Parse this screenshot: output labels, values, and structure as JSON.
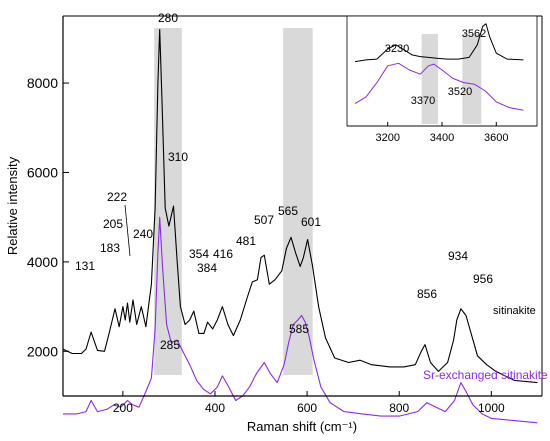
{
  "chart_data": [
    {
      "type": "line",
      "title": "",
      "xlabel": "Raman shift (cm⁻¹)",
      "ylabel": "Relative intensity",
      "xlim": [
        70,
        1110
      ],
      "ylim": [
        1000,
        9500
      ],
      "xticks": [
        200,
        400,
        600,
        800,
        1000
      ],
      "yticks": [
        2000,
        4000,
        6000,
        8000
      ],
      "grid": false,
      "legend": "labels placed beside curves",
      "highlight_bands_x": [
        [
          268,
          328
        ],
        [
          548,
          612
        ]
      ],
      "series": [
        {
          "name": "sitinakite",
          "color": "#000000",
          "x": [
            70,
            90,
            110,
            120,
            131,
            145,
            160,
            170,
            183,
            192,
            200,
            205,
            210,
            215,
            222,
            230,
            240,
            250,
            262,
            270,
            276,
            280,
            285,
            292,
            300,
            310,
            318,
            325,
            335,
            345,
            354,
            365,
            376,
            384,
            395,
            405,
            416,
            428,
            440,
            455,
            470,
            481,
            492,
            500,
            507,
            518,
            530,
            545,
            555,
            565,
            575,
            585,
            592,
            601,
            612,
            625,
            640,
            660,
            690,
            715,
            740,
            780,
            810,
            835,
            848,
            856,
            868,
            885,
            905,
            918,
            925,
            934,
            945,
            956,
            970,
            990,
            1010,
            1050,
            1100
          ],
          "y": [
            2050,
            1950,
            1950,
            2050,
            2430,
            2020,
            2000,
            2400,
            2950,
            2550,
            3000,
            2700,
            3080,
            2650,
            3150,
            2600,
            3000,
            2550,
            3500,
            5200,
            8000,
            9200,
            7600,
            5200,
            4800,
            5250,
            4000,
            3000,
            2600,
            2700,
            2900,
            2400,
            2400,
            2650,
            2500,
            2700,
            3000,
            2600,
            2350,
            2700,
            3200,
            3550,
            3600,
            4100,
            4150,
            3500,
            3600,
            3800,
            4300,
            4550,
            4200,
            3900,
            4100,
            4500,
            3900,
            3000,
            2300,
            1850,
            1750,
            1800,
            1700,
            1650,
            1650,
            1700,
            2000,
            2150,
            1750,
            1550,
            1750,
            2250,
            2700,
            2950,
            2800,
            2400,
            1900,
            1700,
            1550,
            1350,
            1300
          ]
        },
        {
          "name": "Sr-exchanged sitinakite",
          "color": "#8a2be2",
          "x": [
            70,
            100,
            120,
            131,
            145,
            165,
            180,
            195,
            210,
            222,
            235,
            250,
            262,
            270,
            276,
            280,
            286,
            295,
            305,
            318,
            330,
            345,
            360,
            375,
            390,
            405,
            416,
            430,
            445,
            460,
            475,
            490,
            507,
            520,
            535,
            550,
            560,
            570,
            580,
            588,
            596,
            605,
            615,
            630,
            650,
            680,
            720,
            760,
            800,
            840,
            860,
            880,
            900,
            920,
            934,
            945,
            960,
            980,
            1000,
            1050,
            1100
          ],
          "y": [
            600,
            600,
            650,
            900,
            650,
            700,
            800,
            750,
            900,
            800,
            750,
            1100,
            1400,
            2500,
            4200,
            5000,
            3900,
            2600,
            2200,
            2250,
            2000,
            1700,
            1350,
            1150,
            1050,
            1200,
            1450,
            1200,
            900,
            1000,
            1200,
            1500,
            1750,
            1500,
            1300,
            1700,
            2200,
            2600,
            2700,
            2800,
            2650,
            2300,
            1800,
            1200,
            850,
            650,
            600,
            550,
            550,
            650,
            850,
            750,
            650,
            900,
            1300,
            1100,
            800,
            600,
            500,
            450,
            400
          ]
        }
      ],
      "peak_labels_top": [
        "131",
        "183",
        "205",
        "222",
        "240",
        "280",
        "310",
        "354",
        "384",
        "416",
        "481",
        "507",
        "565",
        "601",
        "856",
        "934",
        "956"
      ],
      "peak_labels_bottom": [
        "285",
        "585"
      ],
      "curve_labels": [
        "sitinakite",
        "Sr-exchanged sitinakite"
      ]
    },
    {
      "type": "line",
      "title": "",
      "xlabel": "",
      "ylabel": "",
      "xlim": [
        3050,
        3750
      ],
      "xticks": [
        3200,
        3400,
        3600
      ],
      "highlight_bands_x": [
        [
          3325,
          3385
        ],
        [
          3475,
          3545
        ]
      ],
      "series": [
        {
          "name": "sitinakite",
          "color": "#000000",
          "x": [
            3080,
            3120,
            3160,
            3200,
            3230,
            3260,
            3290,
            3320,
            3350,
            3380,
            3420,
            3460,
            3500,
            3530,
            3550,
            3562,
            3575,
            3600,
            3640,
            3700
          ],
          "y": [
            0.6,
            0.62,
            0.63,
            0.75,
            0.8,
            0.74,
            0.68,
            0.66,
            0.65,
            0.64,
            0.63,
            0.63,
            0.65,
            0.8,
            1.02,
            1.05,
            0.9,
            0.7,
            0.63,
            0.62
          ]
        },
        {
          "name": "Sr-exchanged sitinakite",
          "color": "#8a2be2",
          "x": [
            3080,
            3120,
            3160,
            3200,
            3240,
            3280,
            3320,
            3350,
            3370,
            3400,
            3440,
            3480,
            3520,
            3560,
            3600,
            3650,
            3700
          ],
          "y": [
            0.1,
            0.18,
            0.35,
            0.55,
            0.58,
            0.5,
            0.45,
            0.55,
            0.57,
            0.5,
            0.4,
            0.35,
            0.33,
            0.25,
            0.12,
            0.05,
            0.02
          ]
        }
      ],
      "peak_labels": [
        "3230",
        "3562",
        "3370",
        "3520"
      ]
    }
  ]
}
